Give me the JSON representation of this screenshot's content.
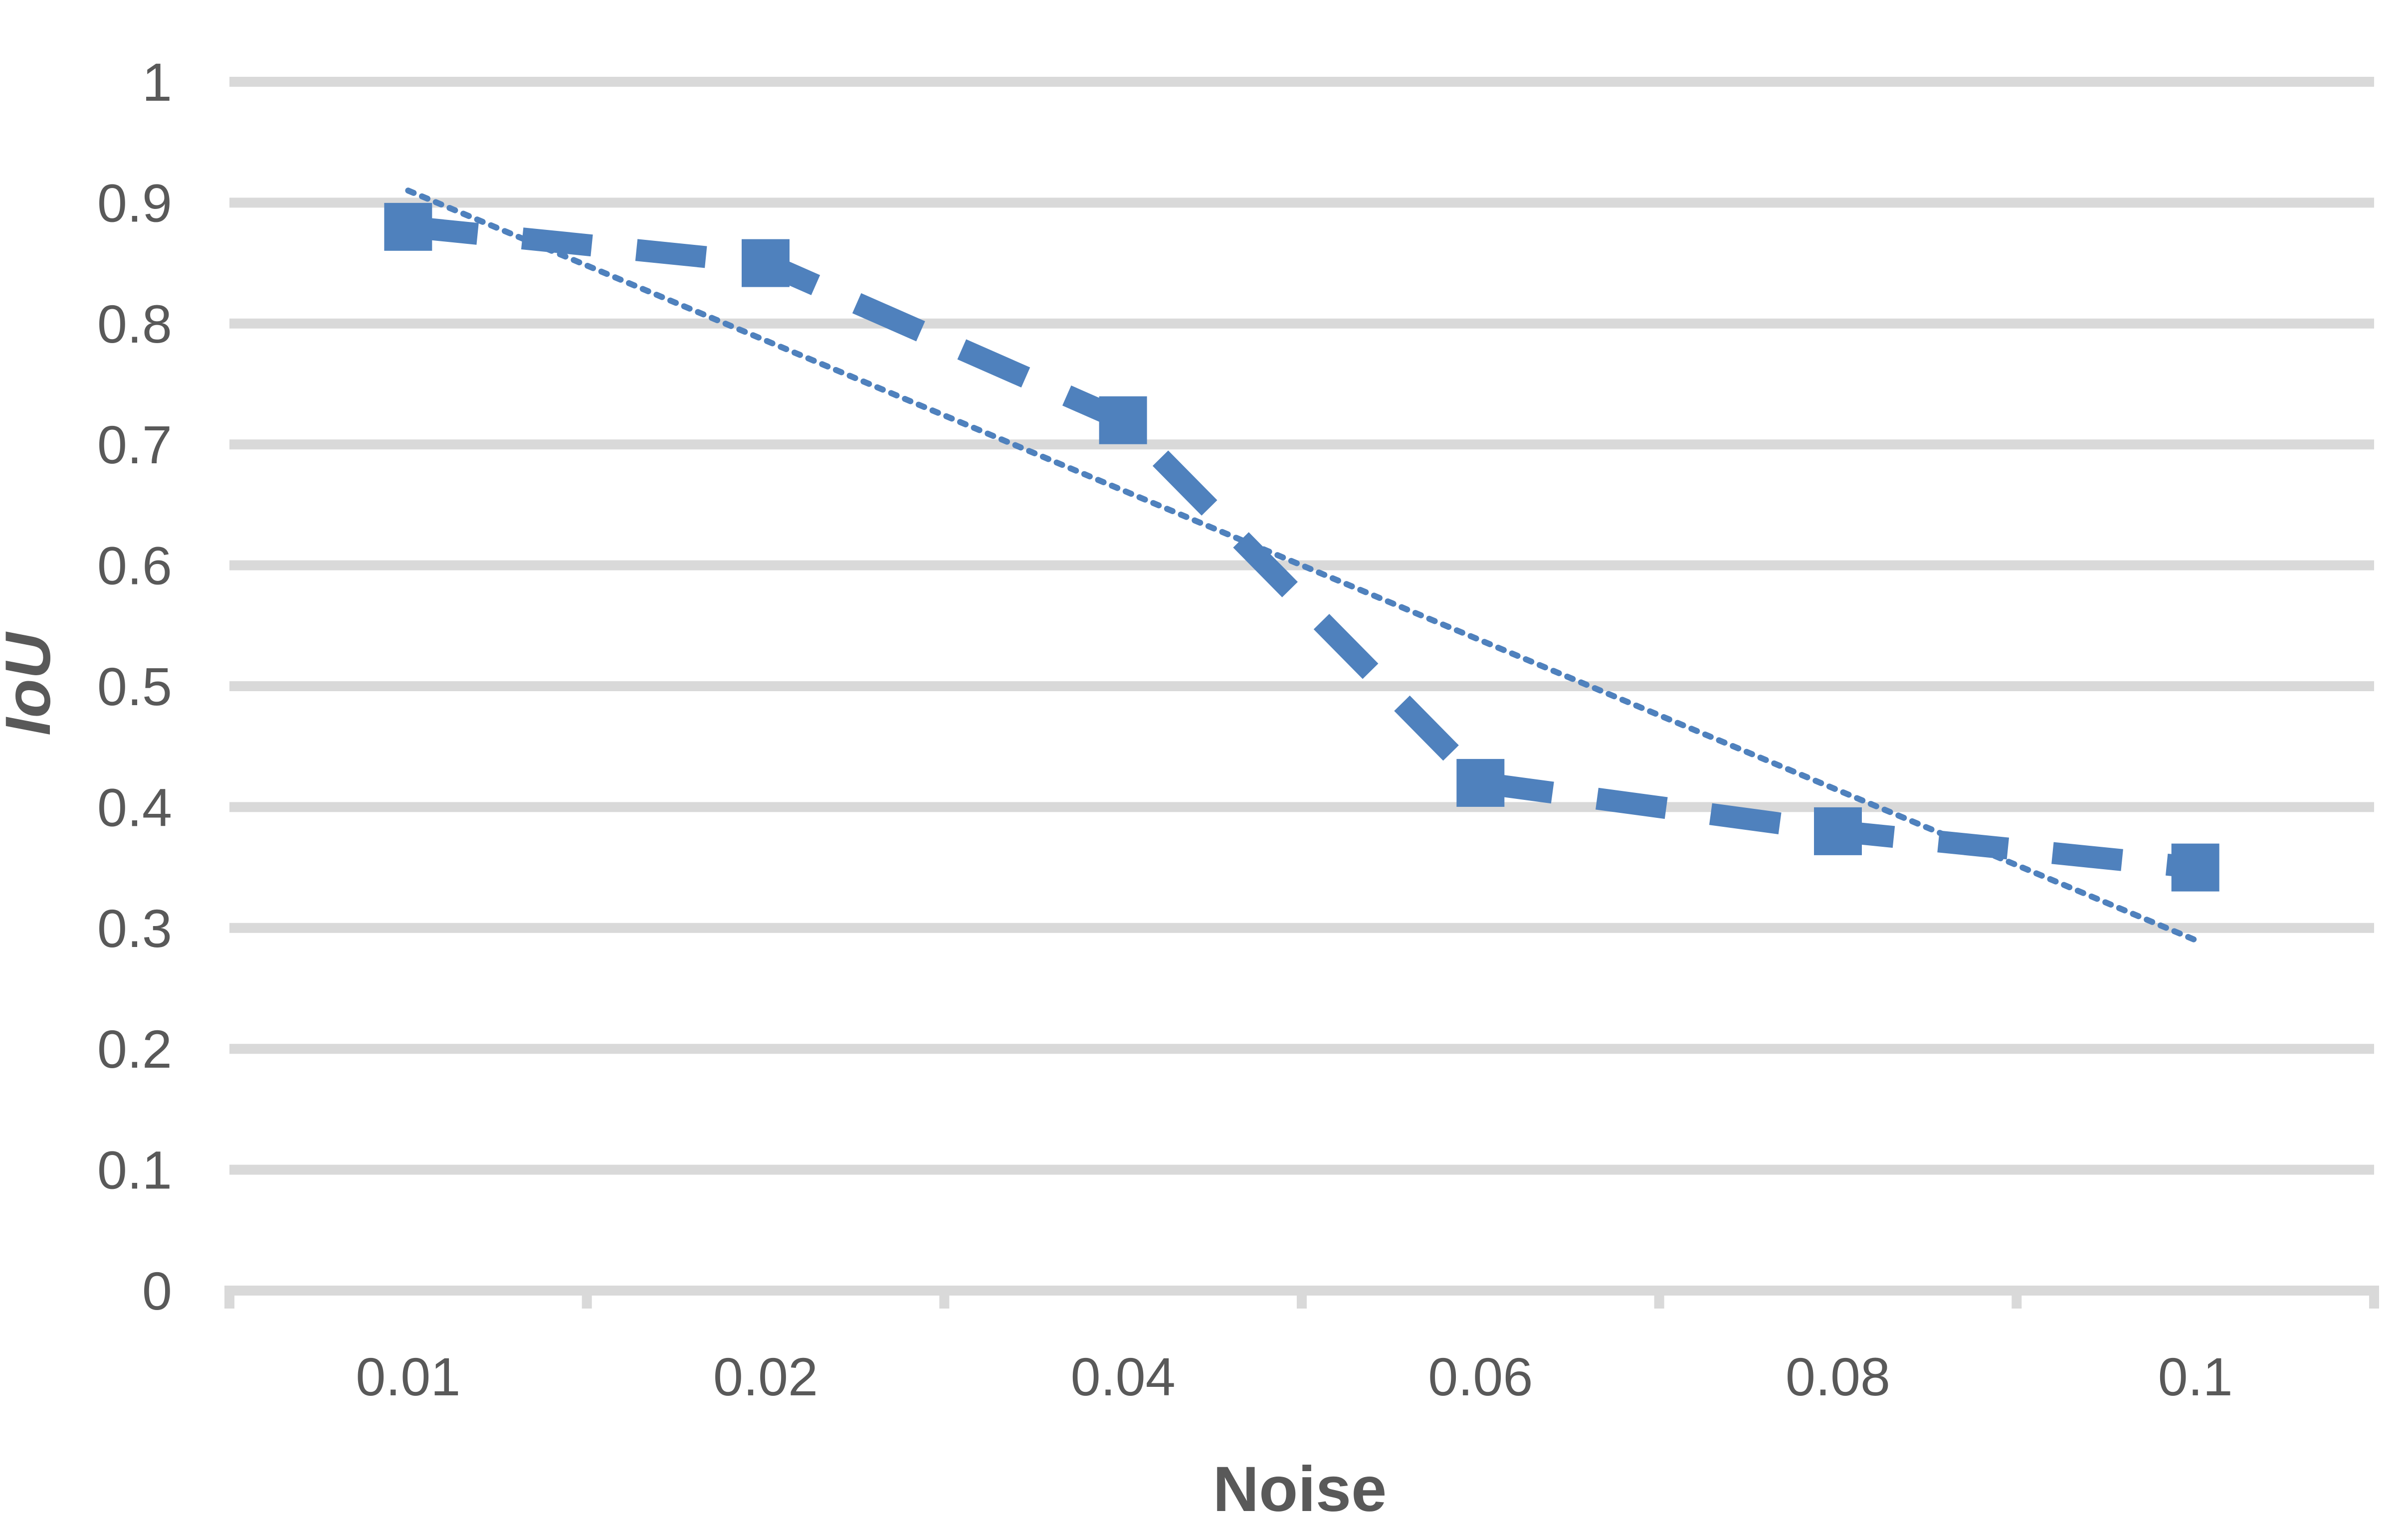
{
  "chart_data": {
    "type": "line",
    "title": "",
    "xlabel": "Noise",
    "ylabel": "IoU",
    "categories": [
      "0.01",
      "0.02",
      "0.04",
      "0.06",
      "0.08",
      "0.1"
    ],
    "series": [
      {
        "values": [
          0.88,
          0.85,
          0.72,
          0.42,
          0.38,
          0.35
        ],
        "color": "#4f81bd",
        "line_style": "dashed",
        "marker": "square"
      }
    ],
    "trendline": {
      "type": "linear",
      "start": 0.91,
      "end": 0.29,
      "color": "#4f81bd",
      "line_style": "dotted"
    },
    "ylim": [
      0,
      1
    ],
    "yticks": [
      "0",
      "0.1",
      "0.2",
      "0.3",
      "0.4",
      "0.5",
      "0.6",
      "0.7",
      "0.8",
      "0.9",
      "1"
    ],
    "grid": "horizontal",
    "legend": "none",
    "colors": {
      "gridline": "#d9d9d9",
      "axis": "#d9d9d9",
      "text": "#595959"
    }
  }
}
